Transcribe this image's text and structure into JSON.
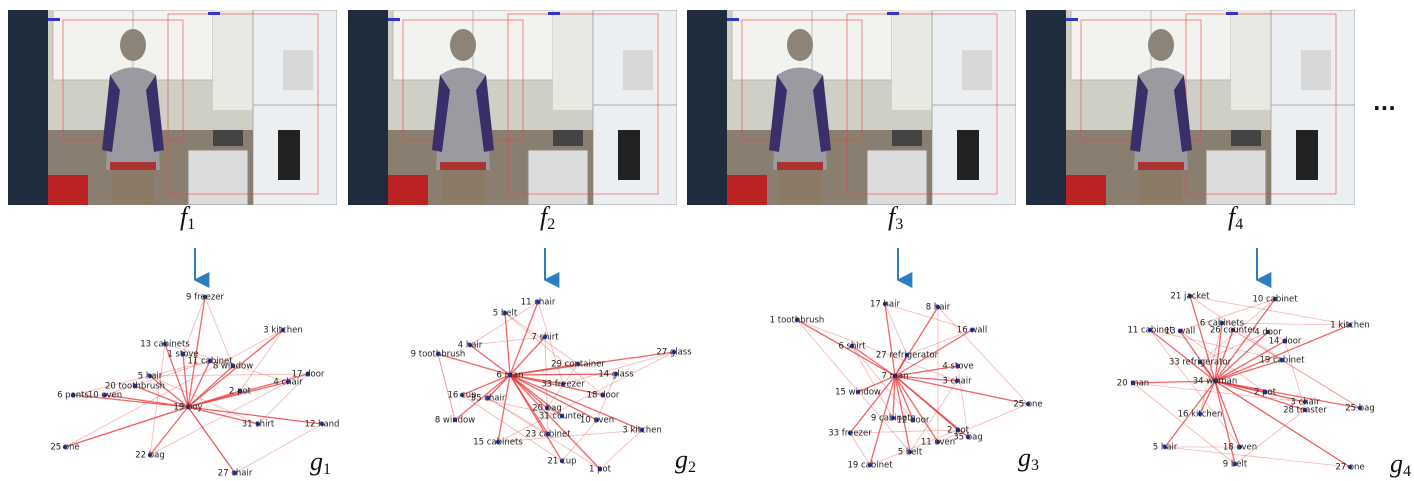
{
  "frames": [
    {
      "name": "f",
      "index": "1"
    },
    {
      "name": "f",
      "index": "2"
    },
    {
      "name": "f",
      "index": "3"
    },
    {
      "name": "f",
      "index": "4"
    }
  ],
  "ellipsis": "...",
  "graphs": [
    {
      "name": "g",
      "index": "1",
      "nodes": [
        "9 freezer",
        "3 kitchen",
        "13 cabinets",
        "1 stove",
        "11 cabinet",
        "8 window",
        "17 door",
        "5 hair",
        "4 chair",
        "20 toothbrush",
        "2 pot",
        "6 pants",
        "10 oven",
        "19 boy",
        "31 shirt",
        "12 hand",
        "25 one",
        "22 bag",
        "27 chair"
      ]
    },
    {
      "name": "g",
      "index": "2",
      "nodes": [
        "11 chair",
        "5 belt",
        "7 shirt",
        "4 hair",
        "27 glass",
        "9 toothbrush",
        "29 container",
        "6 man",
        "14 glass",
        "33 freezer",
        "18 door",
        "16 cup",
        "35 chair",
        "20 bag",
        "31 counter",
        "10 oven",
        "8 window",
        "23 cabinet",
        "3 kitchen",
        "15 cabinets",
        "21 cup",
        "1 pot"
      ]
    },
    {
      "name": "g",
      "index": "3",
      "nodes": [
        "17 hair",
        "8 hair",
        "1 toothbrush",
        "16 wall",
        "6 shirt",
        "27 refrigerator",
        "4 stove",
        "7 man",
        "3 chair",
        "15 window",
        "25 one",
        "9 cabinets",
        "12 door",
        "2 pot",
        "35 bag",
        "33 freezer",
        "11 oven",
        "5 belt",
        "19 cabinet"
      ]
    },
    {
      "name": "g",
      "index": "4",
      "nodes": [
        "21 jacket",
        "10 cabinet",
        "6 cabinets",
        "1 kitchen",
        "11 cabinet",
        "26 counter",
        "13 wall",
        "4 door",
        "14 door",
        "19 cabinet",
        "33 refrigerator",
        "20 man",
        "34 woman",
        "2 pot",
        "3 chair",
        "28 toaster",
        "25 bag",
        "16 kitchen",
        "5 hair",
        "18 oven",
        "9 belt",
        "27 one"
      ]
    }
  ]
}
